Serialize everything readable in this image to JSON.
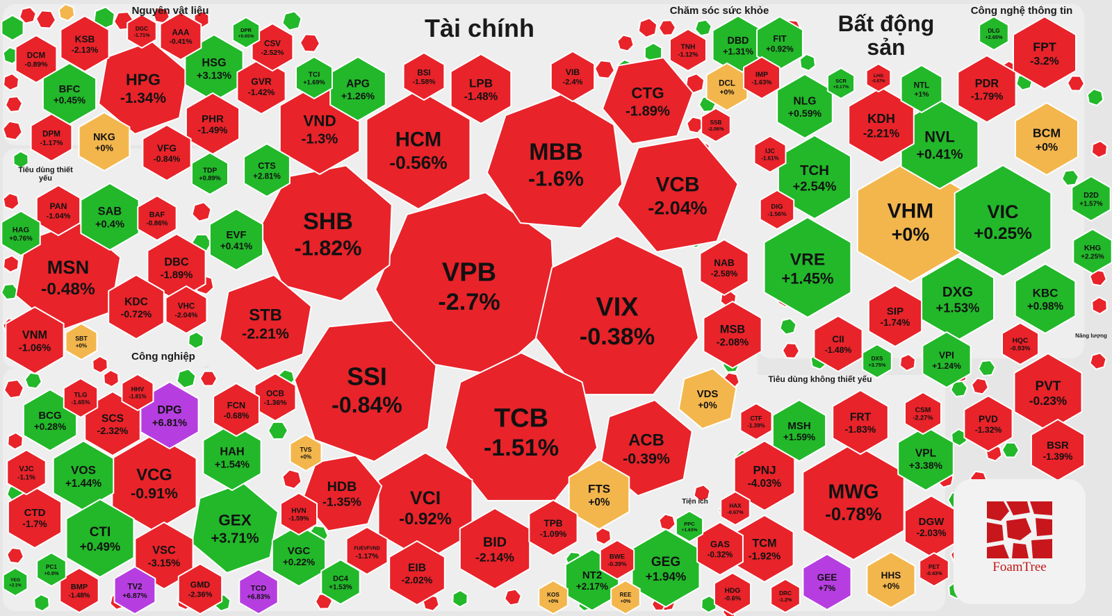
{
  "colors": {
    "down": "#e8232a",
    "up": "#22b82a",
    "flat": "#f3b64d",
    "ceiling": "#b63ee0"
  },
  "logo": {
    "text": "FoamTree"
  },
  "sectors": [
    {
      "id": "nguyen-vat-lieu",
      "label": "Nguyên vật liệu"
    },
    {
      "id": "tai-chinh",
      "label": "Tài chính"
    },
    {
      "id": "cham-soc-suc-khoe",
      "label": "Chăm sóc sức khỏe"
    },
    {
      "id": "bat-dong-san",
      "label": "Bất động sản"
    },
    {
      "id": "cong-nghe-thong-tin",
      "label": "Công nghệ thông tin"
    },
    {
      "id": "tieu-dung-thiet-yeu",
      "label": "Tiêu dùng thiết yếu"
    },
    {
      "id": "cong-nghiep",
      "label": "Công nghiệp"
    },
    {
      "id": "tieu-dung-khong-thiet-yeu",
      "label": "Tiêu dùng không thiết yếu"
    },
    {
      "id": "tien-ich",
      "label": "Tiện ích"
    },
    {
      "id": "nang-luong",
      "label": "Năng lượng"
    }
  ],
  "chart_data": {
    "type": "treemap",
    "value_unit": "% change",
    "cells": [
      {
        "sector": "Tài chính",
        "symbol": "VPB",
        "change": "-2.7%",
        "value": -2.7
      },
      {
        "sector": "Tài chính",
        "symbol": "VIX",
        "change": "-0.38%",
        "value": -0.38
      },
      {
        "sector": "Tài chính",
        "symbol": "SHB",
        "change": "-1.82%",
        "value": -1.82
      },
      {
        "sector": "Tài chính",
        "symbol": "MBB",
        "change": "-1.6%",
        "value": -1.6
      },
      {
        "sector": "Tài chính",
        "symbol": "SSI",
        "change": "-0.84%",
        "value": -0.84
      },
      {
        "sector": "Tài chính",
        "symbol": "TCB",
        "change": "-1.51%",
        "value": -1.51
      },
      {
        "sector": "Tài chính",
        "symbol": "HCM",
        "change": "-0.56%",
        "value": -0.56
      },
      {
        "sector": "Tài chính",
        "symbol": "VCB",
        "change": "-2.04%",
        "value": -2.04
      },
      {
        "sector": "Tài chính",
        "symbol": "VCI",
        "change": "-0.92%",
        "value": -0.92
      },
      {
        "sector": "Tài chính",
        "symbol": "STB",
        "change": "-2.21%",
        "value": -2.21
      },
      {
        "sector": "Tài chính",
        "symbol": "VND",
        "change": "-1.3%",
        "value": -1.3
      },
      {
        "sector": "Tài chính",
        "symbol": "CTG",
        "change": "-1.89%",
        "value": -1.89
      },
      {
        "sector": "Tài chính",
        "symbol": "BID",
        "change": "-2.14%",
        "value": -2.14
      },
      {
        "sector": "Tài chính",
        "symbol": "ACB",
        "change": "-0.39%",
        "value": -0.39
      },
      {
        "sector": "Tài chính",
        "symbol": "LPB",
        "change": "-1.48%",
        "value": -1.48
      },
      {
        "sector": "Tài chính",
        "symbol": "APG",
        "change": "+1.26%",
        "value": 1.26
      },
      {
        "sector": "Tài chính",
        "symbol": "HDB",
        "change": "-1.35%",
        "value": -1.35
      },
      {
        "sector": "Tài chính",
        "symbol": "FTS",
        "change": "+0%",
        "value": 0
      },
      {
        "sector": "Tài chính",
        "symbol": "VDS",
        "change": "+0%",
        "value": 0
      },
      {
        "sector": "Tài chính",
        "symbol": "MSB",
        "change": "-2.08%",
        "value": -2.08
      },
      {
        "sector": "Tài chính",
        "symbol": "NAB",
        "change": "-2.58%",
        "value": -2.58
      },
      {
        "sector": "Tài chính",
        "symbol": "EVF",
        "change": "+0.41%",
        "value": 0.41
      },
      {
        "sector": "Tài chính",
        "symbol": "EIB",
        "change": "-2.02%",
        "value": -2.02
      },
      {
        "sector": "Tài chính",
        "symbol": "TPB",
        "change": "-1.09%",
        "value": -1.09
      },
      {
        "sector": "Tài chính",
        "symbol": "BSI",
        "change": "-1.58%",
        "value": -1.58
      },
      {
        "sector": "Tài chính",
        "symbol": "VIB",
        "change": "-2.4%",
        "value": -2.4
      },
      {
        "sector": "Tài chính",
        "symbol": "CTS",
        "change": "+2.81%",
        "value": 2.81
      },
      {
        "sector": "Tài chính",
        "symbol": "OCB",
        "change": "-1.36%",
        "value": -1.36
      },
      {
        "sector": "Tài chính",
        "symbol": "FUEVFVND",
        "change": "-1.17%",
        "value": -1.17
      },
      {
        "sector": "Tài chính",
        "symbol": "TCI",
        "change": "+1.69%",
        "value": 1.69
      },
      {
        "sector": "Tài chính",
        "symbol": "TVS",
        "change": "+0%",
        "value": 0
      },
      {
        "sector": "Tài chính",
        "symbol": "SSB",
        "change": "-2.06%",
        "value": -2.06
      },
      {
        "sector": "Nguyên vật liệu",
        "symbol": "HPG",
        "change": "-1.34%",
        "value": -1.34
      },
      {
        "sector": "Nguyên vật liệu",
        "symbol": "KSB",
        "change": "-2.13%",
        "value": -2.13
      },
      {
        "sector": "Nguyên vật liệu",
        "symbol": "DCM",
        "change": "-0.89%",
        "value": -0.89
      },
      {
        "sector": "Nguyên vật liệu",
        "symbol": "BFC",
        "change": "+0.45%",
        "value": 0.45
      },
      {
        "sector": "Nguyên vật liệu",
        "symbol": "NKG",
        "change": "+0%",
        "value": 0
      },
      {
        "sector": "Nguyên vật liệu",
        "symbol": "HSG",
        "change": "+3.13%",
        "value": 3.13
      },
      {
        "sector": "Nguyên vật liệu",
        "symbol": "GVR",
        "change": "-1.42%",
        "value": -1.42
      },
      {
        "sector": "Nguyên vật liệu",
        "symbol": "PHR",
        "change": "-1.49%",
        "value": -1.49
      },
      {
        "sector": "Nguyên vật liệu",
        "symbol": "VFG",
        "change": "-0.84%",
        "value": -0.84
      },
      {
        "sector": "Nguyên vật liệu",
        "symbol": "DPM",
        "change": "-1.17%",
        "value": -1.17
      },
      {
        "sector": "Nguyên vật liệu",
        "symbol": "AAA",
        "change": "-0.41%",
        "value": -0.41
      },
      {
        "sector": "Nguyên vật liệu",
        "symbol": "CSV",
        "change": "-2.52%",
        "value": -2.52
      },
      {
        "sector": "Nguyên vật liệu",
        "symbol": "TDP",
        "change": "+0.89%",
        "value": 0.89
      },
      {
        "sector": "Nguyên vật liệu",
        "symbol": "DGC",
        "change": "-1.71%",
        "value": -1.71
      },
      {
        "sector": "Nguyên vật liệu",
        "symbol": "DPR",
        "change": "+0.65%",
        "value": 0.65
      },
      {
        "sector": "Tiêu dùng thiết yếu",
        "symbol": "MSN",
        "change": "-0.48%",
        "value": -0.48
      },
      {
        "sector": "Tiêu dùng thiết yếu",
        "symbol": "VNM",
        "change": "-1.06%",
        "value": -1.06
      },
      {
        "sector": "Tiêu dùng thiết yếu",
        "symbol": "SAB",
        "change": "+0.4%",
        "value": 0.4
      },
      {
        "sector": "Tiêu dùng thiết yếu",
        "symbol": "DBC",
        "change": "-1.89%",
        "value": -1.89
      },
      {
        "sector": "Tiêu dùng thiết yếu",
        "symbol": "KDC",
        "change": "-0.72%",
        "value": -0.72
      },
      {
        "sector": "Tiêu dùng thiết yếu",
        "symbol": "PAN",
        "change": "-1.04%",
        "value": -1.04
      },
      {
        "sector": "Tiêu dùng thiết yếu",
        "symbol": "HAG",
        "change": "+0.76%",
        "value": 0.76
      },
      {
        "sector": "Tiêu dùng thiết yếu",
        "symbol": "BAF",
        "change": "-0.86%",
        "value": -0.86
      },
      {
        "sector": "Tiêu dùng thiết yếu",
        "symbol": "VHC",
        "change": "-2.04%",
        "value": -2.04
      },
      {
        "sector": "Tiêu dùng thiết yếu",
        "symbol": "SBT",
        "change": "+0%",
        "value": 0
      },
      {
        "sector": "Công nghiệp",
        "symbol": "VCG",
        "change": "-0.91%",
        "value": -0.91
      },
      {
        "sector": "Công nghiệp",
        "symbol": "GEX",
        "change": "+3.71%",
        "value": 3.71
      },
      {
        "sector": "Công nghiệp",
        "symbol": "DPG",
        "change": "+6.81%",
        "value": 6.81
      },
      {
        "sector": "Công nghiệp",
        "symbol": "SCS",
        "change": "-2.32%",
        "value": -2.32
      },
      {
        "sector": "Công nghiệp",
        "symbol": "BCG",
        "change": "+0.28%",
        "value": 0.28
      },
      {
        "sector": "Công nghiệp",
        "symbol": "VOS",
        "change": "+1.44%",
        "value": 1.44
      },
      {
        "sector": "Công nghiệp",
        "symbol": "CTI",
        "change": "+0.49%",
        "value": 0.49
      },
      {
        "sector": "Công nghiệp",
        "symbol": "CTD",
        "change": "-1.7%",
        "value": -1.7
      },
      {
        "sector": "Công nghiệp",
        "symbol": "VJC",
        "change": "-1.1%",
        "value": -1.1
      },
      {
        "sector": "Công nghiệp",
        "symbol": "HAH",
        "change": "+1.54%",
        "value": 1.54
      },
      {
        "sector": "Công nghiệp",
        "symbol": "FCN",
        "change": "-0.68%",
        "value": -0.68
      },
      {
        "sector": "Công nghiệp",
        "symbol": "VSC",
        "change": "-3.15%",
        "value": -3.15
      },
      {
        "sector": "Công nghiệp",
        "symbol": "VGC",
        "change": "+0.22%",
        "value": 0.22
      },
      {
        "sector": "Công nghiệp",
        "symbol": "GMD",
        "change": "-2.36%",
        "value": -2.36
      },
      {
        "sector": "Công nghiệp",
        "symbol": "HVN",
        "change": "-1.59%",
        "value": -1.59
      },
      {
        "sector": "Công nghiệp",
        "symbol": "TV2",
        "change": "+6.87%",
        "value": 6.87
      },
      {
        "sector": "Công nghiệp",
        "symbol": "TCD",
        "change": "+6.83%",
        "value": 6.83
      },
      {
        "sector": "Công nghiệp",
        "symbol": "BMP",
        "change": "-1.48%",
        "value": -1.48
      },
      {
        "sector": "Công nghiệp",
        "symbol": "TLG",
        "change": "-1.65%",
        "value": -1.65
      },
      {
        "sector": "Công nghiệp",
        "symbol": "HHV",
        "change": "-1.81%",
        "value": -1.81
      },
      {
        "sector": "Công nghiệp",
        "symbol": "DC4",
        "change": "+1.53%",
        "value": 1.53
      },
      {
        "sector": "Công nghiệp",
        "symbol": "PC1",
        "change": "+0.9%",
        "value": 0.9
      },
      {
        "sector": "Công nghiệp",
        "symbol": "YEG",
        "change": "+2.1%",
        "value": 2.1
      },
      {
        "sector": "Chăm sóc sức khỏe",
        "symbol": "DBD",
        "change": "+1.31%",
        "value": 1.31
      },
      {
        "sector": "Chăm sóc sức khỏe",
        "symbol": "FIT",
        "change": "+0.92%",
        "value": 0.92
      },
      {
        "sector": "Chăm sóc sức khỏe",
        "symbol": "DCL",
        "change": "+0%",
        "value": 0
      },
      {
        "sector": "Chăm sóc sức khỏe",
        "symbol": "IMP",
        "change": "-1.63%",
        "value": -1.63
      },
      {
        "sector": "Chăm sóc sức khỏe",
        "symbol": "TNH",
        "change": "-1.12%",
        "value": -1.12
      },
      {
        "sector": "Bất động sản",
        "symbol": "VHM",
        "change": "+0%",
        "value": 0
      },
      {
        "sector": "Bất động sản",
        "symbol": "VIC",
        "change": "+0.25%",
        "value": 0.25
      },
      {
        "sector": "Bất động sản",
        "symbol": "VRE",
        "change": "+1.45%",
        "value": 1.45
      },
      {
        "sector": "Bất động sản",
        "symbol": "NVL",
        "change": "+0.41%",
        "value": 0.41
      },
      {
        "sector": "Bất động sản",
        "symbol": "TCH",
        "change": "+2.54%",
        "value": 2.54
      },
      {
        "sector": "Bất động sản",
        "symbol": "DXG",
        "change": "+1.53%",
        "value": 1.53
      },
      {
        "sector": "Bất động sản",
        "symbol": "KDH",
        "change": "-2.21%",
        "value": -2.21
      },
      {
        "sector": "Bất động sản",
        "symbol": "BCM",
        "change": "+0%",
        "value": 0
      },
      {
        "sector": "Bất động sản",
        "symbol": "KBC",
        "change": "+0.98%",
        "value": 0.98
      },
      {
        "sector": "Bất động sản",
        "symbol": "NLG",
        "change": "+0.59%",
        "value": 0.59
      },
      {
        "sector": "Bất động sản",
        "symbol": "SIP",
        "change": "-1.74%",
        "value": -1.74
      },
      {
        "sector": "Bất động sản",
        "symbol": "PDR",
        "change": "-1.79%",
        "value": -1.79
      },
      {
        "sector": "Bất động sản",
        "symbol": "CII",
        "change": "-1.48%",
        "value": -1.48
      },
      {
        "sector": "Bất động sản",
        "symbol": "VPI",
        "change": "+1.24%",
        "value": 1.24
      },
      {
        "sector": "Bất động sản",
        "symbol": "NTL",
        "change": "+1%",
        "value": 1
      },
      {
        "sector": "Bất động sản",
        "symbol": "D2D",
        "change": "+1.57%",
        "value": 1.57
      },
      {
        "sector": "Bất động sản",
        "symbol": "KHG",
        "change": "+2.25%",
        "value": 2.25
      },
      {
        "sector": "Bất động sản",
        "symbol": "HQC",
        "change": "-0.93%",
        "value": -0.93
      },
      {
        "sector": "Bất động sản",
        "symbol": "DIG",
        "change": "-1.56%",
        "value": -1.56
      },
      {
        "sector": "Bất động sản",
        "symbol": "IJC",
        "change": "-1.61%",
        "value": -1.61
      },
      {
        "sector": "Bất động sản",
        "symbol": "DXS",
        "change": "+3.75%",
        "value": 3.75
      },
      {
        "sector": "Bất động sản",
        "symbol": "SCR",
        "change": "+0.17%",
        "value": 0.17
      },
      {
        "sector": "Bất động sản",
        "symbol": "LHG",
        "change": "-0.67%",
        "value": -0.67
      },
      {
        "sector": "Công nghệ thông tin",
        "symbol": "FPT",
        "change": "-3.2%",
        "value": -3.2
      },
      {
        "sector": "Công nghệ thông tin",
        "symbol": "DLG",
        "change": "+2.65%",
        "value": 2.65
      },
      {
        "sector": "Tiêu dùng không thiết yếu",
        "symbol": "MWG",
        "change": "-0.78%",
        "value": -0.78
      },
      {
        "sector": "Tiêu dùng không thiết yếu",
        "symbol": "PNJ",
        "change": "-4.03%",
        "value": -4.03
      },
      {
        "sector": "Tiêu dùng không thiết yếu",
        "symbol": "VPL",
        "change": "+3.38%",
        "value": 3.38
      },
      {
        "sector": "Tiêu dùng không thiết yếu",
        "symbol": "FRT",
        "change": "-1.83%",
        "value": -1.83
      },
      {
        "sector": "Tiêu dùng không thiết yếu",
        "symbol": "MSH",
        "change": "+1.59%",
        "value": 1.59
      },
      {
        "sector": "Tiêu dùng không thiết yếu",
        "symbol": "TCM",
        "change": "-1.92%",
        "value": -1.92
      },
      {
        "sector": "Tiêu dùng không thiết yếu",
        "symbol": "DGW",
        "change": "-2.03%",
        "value": -2.03
      },
      {
        "sector": "Tiêu dùng không thiết yếu",
        "symbol": "GEE",
        "change": "+7%",
        "value": 7
      },
      {
        "sector": "Tiêu dùng không thiết yếu",
        "symbol": "HHS",
        "change": "+0%",
        "value": 0
      },
      {
        "sector": "Tiêu dùng không thiết yếu",
        "symbol": "CSM",
        "change": "-2.27%",
        "value": -2.27
      },
      {
        "sector": "Tiêu dùng không thiết yếu",
        "symbol": "CTF",
        "change": "-1.39%",
        "value": -1.39
      },
      {
        "sector": "Tiêu dùng không thiết yếu",
        "symbol": "PET",
        "change": "-0.43%",
        "value": -0.43
      },
      {
        "sector": "Tiêu dùng không thiết yếu",
        "symbol": "HAX",
        "change": "-0.67%",
        "value": -0.67
      },
      {
        "sector": "Tiêu dùng không thiết yếu",
        "symbol": "DRC",
        "change": "-1.2%",
        "value": -1.2
      },
      {
        "sector": "Năng lượng",
        "symbol": "PVT",
        "change": "-0.23%",
        "value": -0.23
      },
      {
        "sector": "Năng lượng",
        "symbol": "BSR",
        "change": "-1.39%",
        "value": -1.39
      },
      {
        "sector": "Năng lượng",
        "symbol": "PVD",
        "change": "-1.32%",
        "value": -1.32
      },
      {
        "sector": "Tiện ích",
        "symbol": "GEG",
        "change": "+1.94%",
        "value": 1.94
      },
      {
        "sector": "Tiện ích",
        "symbol": "NT2",
        "change": "+2.17%",
        "value": 2.17
      },
      {
        "sector": "Tiện ích",
        "symbol": "GAS",
        "change": "-0.32%",
        "value": -0.32
      },
      {
        "sector": "Tiện ích",
        "symbol": "HDG",
        "change": "-0.6%",
        "value": -0.6
      },
      {
        "sector": "Tiện ích",
        "symbol": "BWE",
        "change": "-0.39%",
        "value": -0.39
      },
      {
        "sector": "Tiện ích",
        "symbol": "REE",
        "change": "+0%",
        "value": 0
      },
      {
        "sector": "Tiện ích",
        "symbol": "KOS",
        "change": "+0%",
        "value": 0
      },
      {
        "sector": "Tiện ích",
        "symbol": "PPC",
        "change": "+1.63%",
        "value": 1.63
      }
    ]
  }
}
